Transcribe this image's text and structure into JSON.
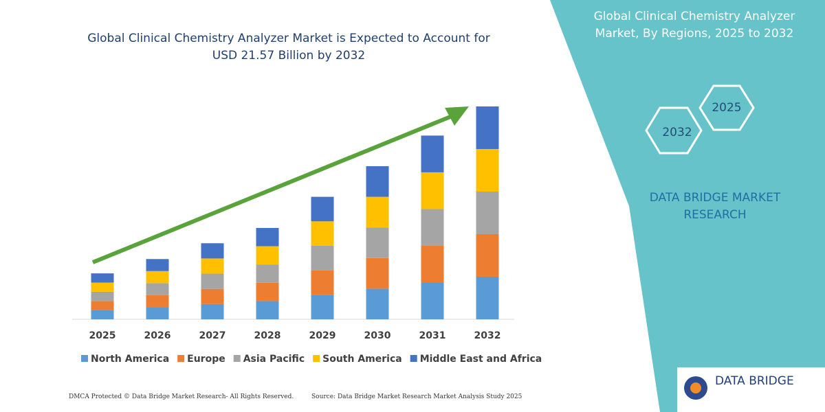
{
  "chart_data": {
    "type": "stacked-bar",
    "title": "Global Clinical Chemistry Analyzer Market is Expected to Account for  USD 21.57 Billion by 2032",
    "categories": [
      "2025",
      "2026",
      "2027",
      "2028",
      "2029",
      "2030",
      "2031",
      "2032"
    ],
    "series": [
      {
        "name": "North America",
        "color": "#5b9bd5",
        "values": [
          0.93,
          1.22,
          1.54,
          1.85,
          2.48,
          3.1,
          3.72,
          4.31
        ]
      },
      {
        "name": "Europe",
        "color": "#ed7d31",
        "values": [
          0.93,
          1.22,
          1.54,
          1.85,
          2.48,
          3.1,
          3.72,
          4.31
        ]
      },
      {
        "name": "Asia Pacific",
        "color": "#a5a5a5",
        "values": [
          0.93,
          1.22,
          1.54,
          1.85,
          2.48,
          3.1,
          3.72,
          4.31
        ]
      },
      {
        "name": "South America",
        "color": "#ffc000",
        "values": [
          0.93,
          1.22,
          1.54,
          1.85,
          2.48,
          3.1,
          3.72,
          4.31
        ]
      },
      {
        "name": "Middle East and Africa",
        "color": "#4472c4",
        "values": [
          0.93,
          1.22,
          1.54,
          1.85,
          2.48,
          3.1,
          3.72,
          4.31
        ]
      }
    ]
  },
  "side_panel": {
    "title": "Global Clinical Chemistry Analyzer Market, By Regions, 2025 to 2032",
    "hex_1": "2025",
    "hex_2": "2032",
    "company": "DATA BRIDGE MARKET RESEARCH",
    "logo": "DATA BRIDGE"
  },
  "footer": {
    "left": "DMCA Protected © Data Bridge Market Research- All Rights Reserved.",
    "right": "Source: Data Bridge Market Research Market Analysis Study 2025"
  }
}
